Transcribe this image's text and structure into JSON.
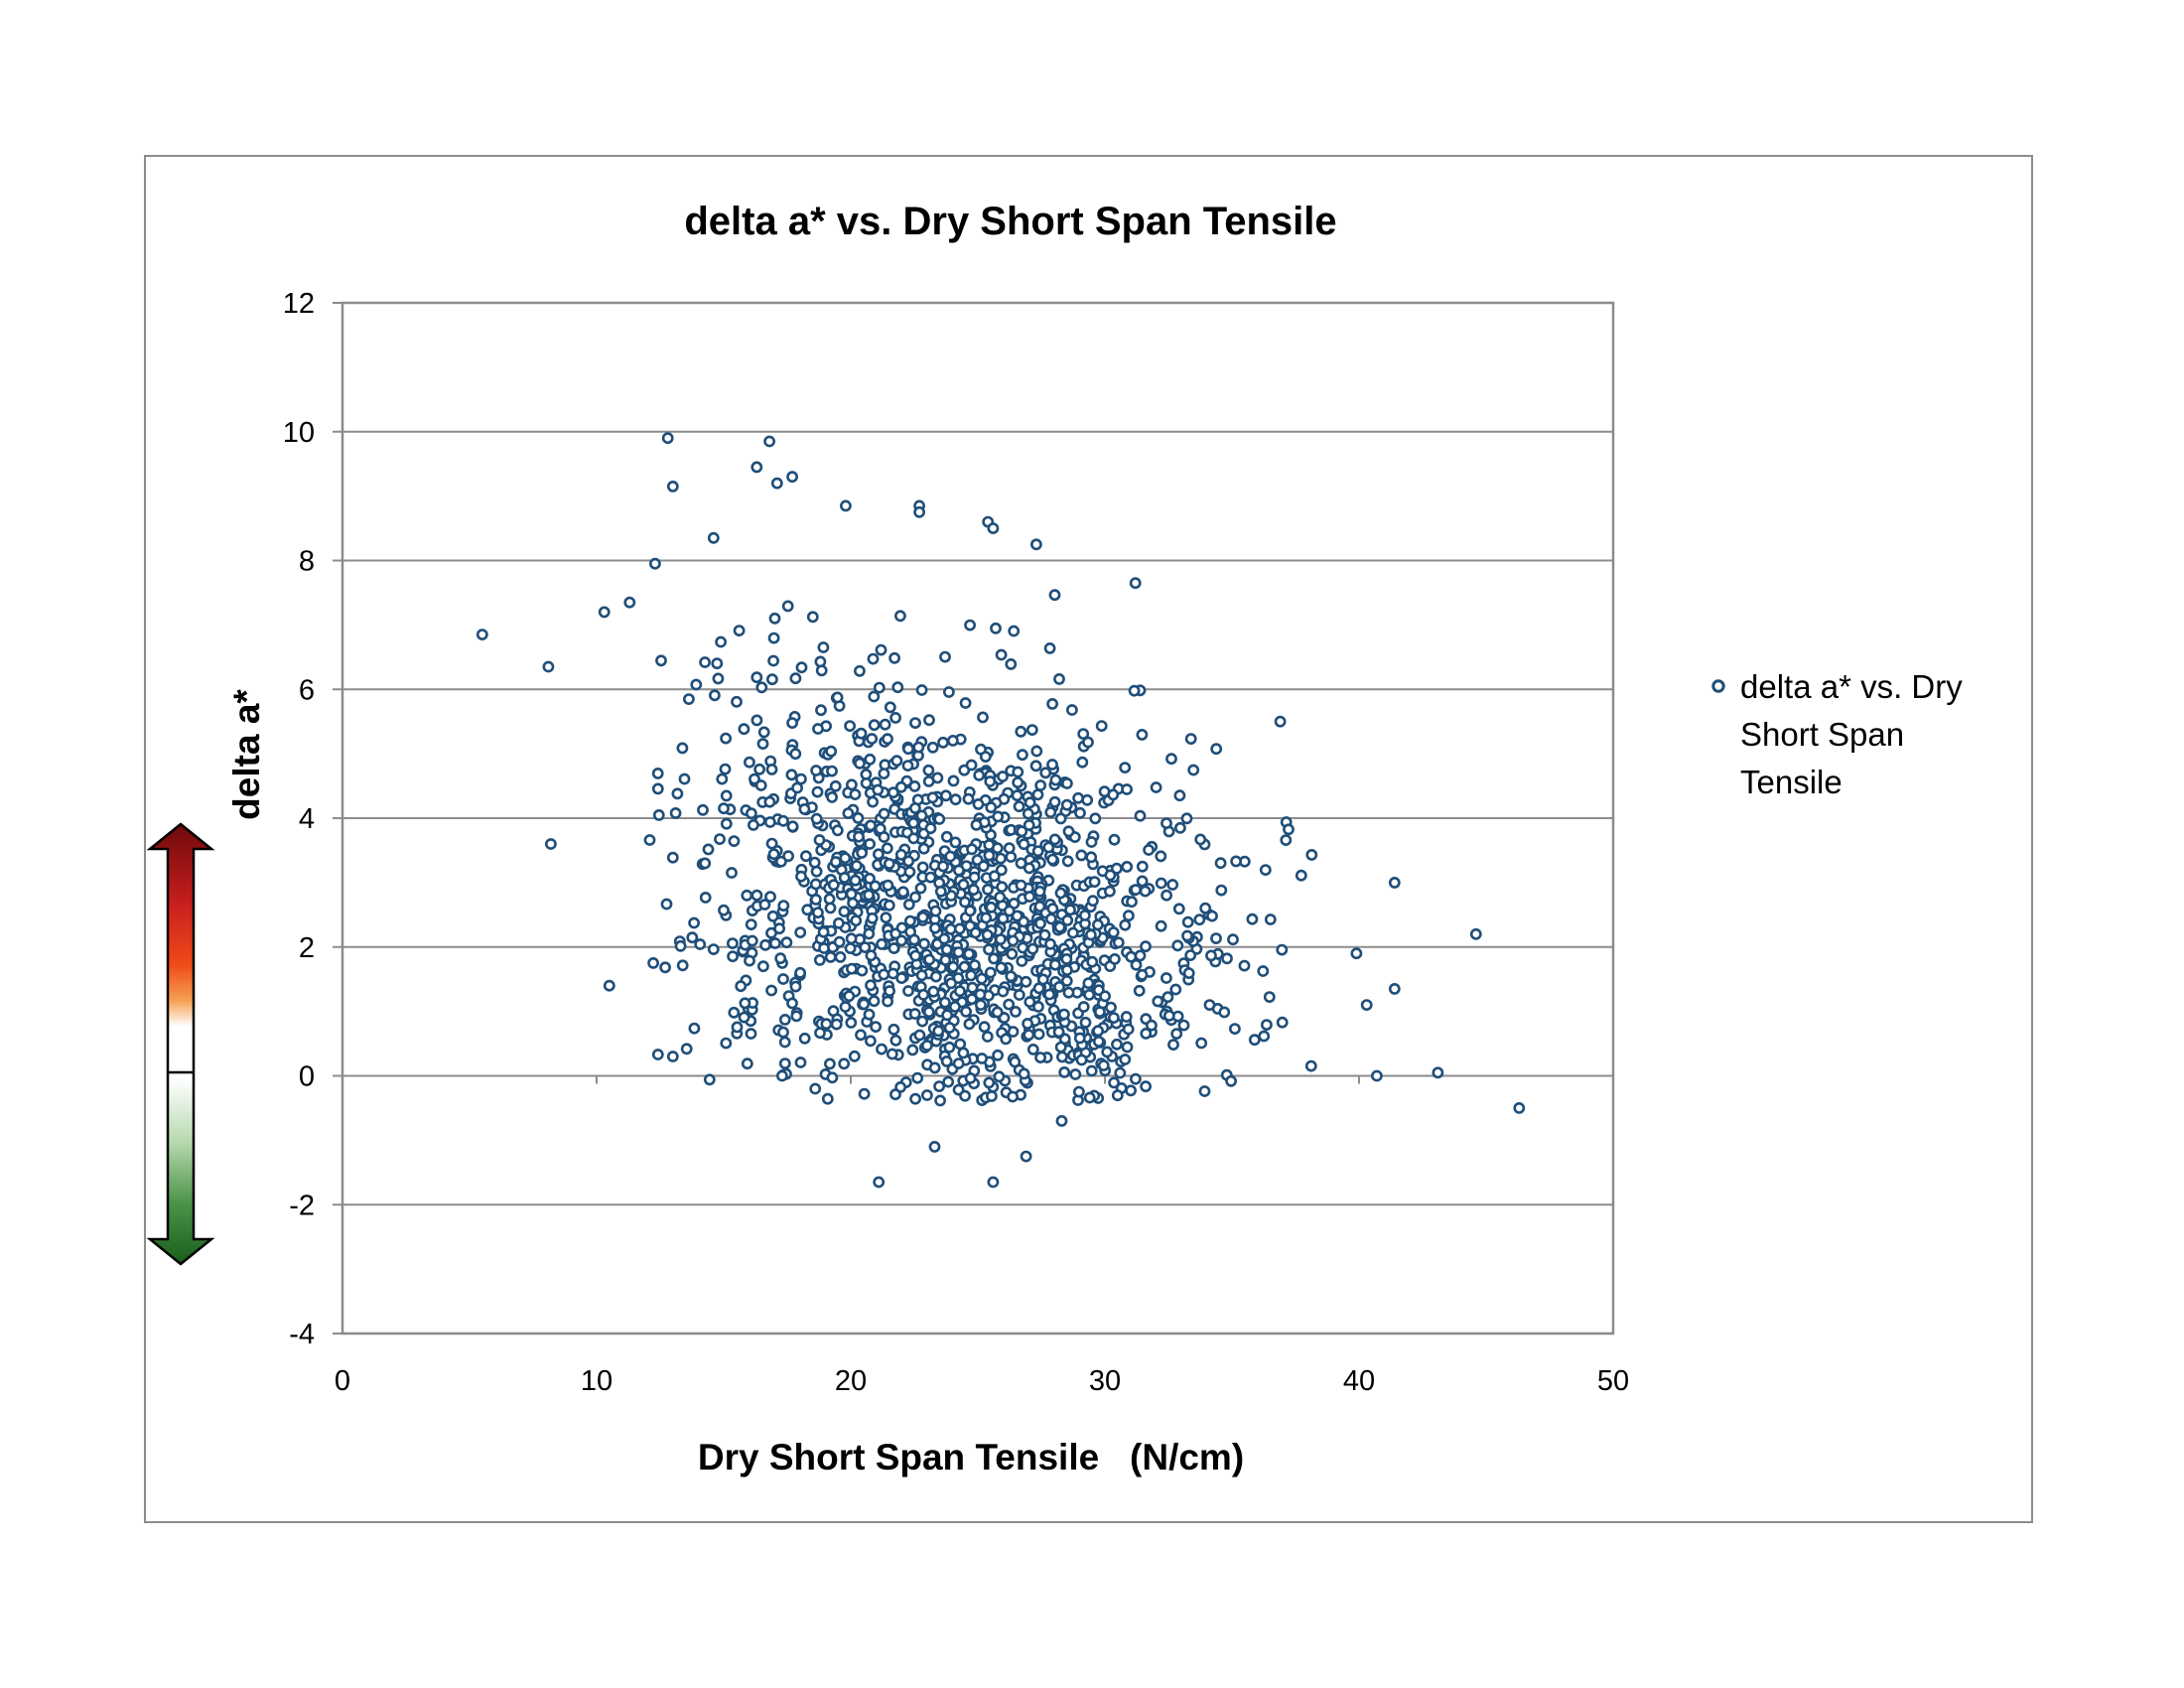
{
  "colors": {
    "marker": "#1f4e79",
    "grid": "#8c8c8c",
    "frame": "#8c8c8c",
    "arrow_up_top": "#7a0c0c",
    "arrow_up_mid": "#e63c14",
    "arrow_up_low": "#f5a050",
    "arrow_down_bottom": "#1e6e1e",
    "arrow_down_mid": "#a9cfa0"
  },
  "icons": {
    "indicator": "double-arrow-red-green-icon",
    "legend_marker": "circle-marker-icon"
  },
  "chart_data": {
    "type": "scatter",
    "title": "delta a* vs. Dry Short Span Tensile",
    "xlabel": "Dry Short Span Tensile   (N/cm)",
    "ylabel": "delta  a*",
    "xlim": [
      0,
      50
    ],
    "ylim": [
      -4,
      12
    ],
    "xticks": [
      0,
      10,
      20,
      30,
      40,
      50
    ],
    "yticks": [
      -4,
      -2,
      0,
      2,
      4,
      6,
      8,
      10,
      12
    ],
    "grid": "horizontal major gridlines",
    "legend_position": "right",
    "series": [
      {
        "name": "delta a* vs. Dry Short Span Tensile",
        "marker": "open-circle",
        "points_count_estimate": 1400,
        "visible_outliers": [
          [
            5.5,
            6.85
          ],
          [
            8.1,
            6.35
          ],
          [
            8.2,
            3.6
          ],
          [
            10.3,
            7.2
          ],
          [
            10.5,
            1.4
          ],
          [
            11.3,
            7.35
          ],
          [
            12.3,
            7.95
          ],
          [
            12.8,
            9.9
          ],
          [
            13.0,
            9.15
          ],
          [
            13.0,
            0.3
          ],
          [
            14.6,
            8.35
          ],
          [
            16.3,
            9.45
          ],
          [
            16.8,
            9.85
          ],
          [
            17.7,
            9.3
          ],
          [
            17.1,
            9.2
          ],
          [
            19.8,
            8.85
          ],
          [
            22.7,
            8.85
          ],
          [
            22.7,
            8.75
          ],
          [
            25.4,
            8.6
          ],
          [
            25.6,
            8.5
          ],
          [
            27.3,
            8.25
          ],
          [
            31.2,
            7.65
          ],
          [
            36.9,
            5.5
          ],
          [
            21.1,
            -1.65
          ],
          [
            25.6,
            -1.65
          ],
          [
            26.9,
            -1.25
          ],
          [
            23.3,
            -1.1
          ],
          [
            28.3,
            -0.7
          ],
          [
            39.9,
            1.9
          ],
          [
            40.3,
            1.1
          ],
          [
            41.4,
            3.0
          ],
          [
            41.4,
            1.35
          ],
          [
            40.7,
            0.0
          ],
          [
            43.1,
            0.05
          ],
          [
            44.6,
            2.2
          ],
          [
            46.3,
            -0.5
          ],
          [
            17.3,
            0.0
          ],
          [
            18.6,
            -0.2
          ]
        ],
        "cluster_center": [
          24.5,
          2.2
        ],
        "cluster_spread": [
          5.3,
          1.65
        ]
      }
    ]
  },
  "legend": {
    "line1": "delta a* vs. Dry",
    "line2": "Short Span",
    "line3": "Tensile"
  }
}
